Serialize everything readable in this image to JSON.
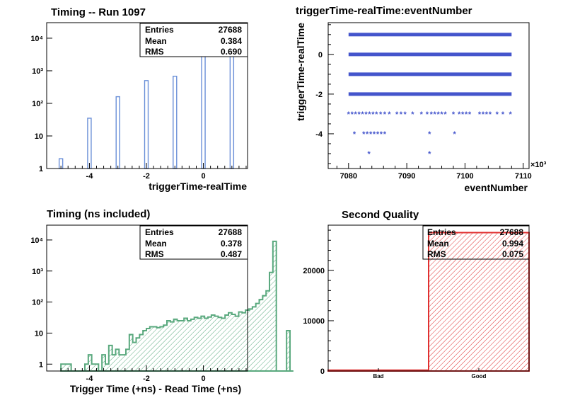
{
  "chart_data": [
    {
      "id": "timing",
      "type": "bar",
      "title": "Timing -- Run 1097",
      "xlabel": "triggerTime-realTime",
      "ylabel": "",
      "x_ticks": [
        "-4",
        "-2",
        "0"
      ],
      "y_ticks": [
        "1",
        "10",
        "10²",
        "10³",
        "10⁴"
      ],
      "y_scale": "log",
      "xlim": [
        -5.5,
        1.55
      ],
      "ylim": [
        1,
        30000
      ],
      "bar_color": "#6a8fd8",
      "categories": [
        -5,
        -4,
        -3,
        -2,
        -1,
        0,
        1
      ],
      "values": [
        2,
        35,
        160,
        500,
        680,
        14000,
        12000
      ],
      "stats": {
        "entries_label": "Entries",
        "entries": "27688",
        "mean_label": "Mean",
        "mean": "0.384",
        "rms_label": "RMS",
        "rms": "0.690"
      }
    },
    {
      "id": "scatter",
      "type": "scatter",
      "title": "triggerTime-realTime:eventNumber",
      "xlabel": "eventNumber",
      "ylabel": "triggerTime-realTime",
      "x_ticks": [
        "7080",
        "7090",
        "7100",
        "7110"
      ],
      "y_ticks": [
        "-4",
        "-2",
        "0"
      ],
      "x_multiplier": "×10³",
      "xlim": [
        7076.5,
        7111
      ],
      "ylim": [
        -5.75,
        1.6
      ],
      "marker_color": "#4455cc",
      "bands": [
        {
          "y": 1,
          "x_ranges": [
            [
              7080,
              7108
            ]
          ]
        },
        {
          "y": 0,
          "x_ranges": [
            [
              7080,
              7108
            ]
          ]
        },
        {
          "y": -1,
          "x_ranges": [
            [
              7080,
              7108
            ]
          ]
        },
        {
          "y": -2,
          "x_ranges": [
            [
              7080,
              7108
            ]
          ]
        }
      ],
      "points": [
        {
          "x": 7080.0,
          "y": -3
        },
        {
          "x": 7080.6,
          "y": -3
        },
        {
          "x": 7081.2,
          "y": -3
        },
        {
          "x": 7081.8,
          "y": -3
        },
        {
          "x": 7082.4,
          "y": -3
        },
        {
          "x": 7083.0,
          "y": -3
        },
        {
          "x": 7083.6,
          "y": -3
        },
        {
          "x": 7084.2,
          "y": -3
        },
        {
          "x": 7084.8,
          "y": -3
        },
        {
          "x": 7085.5,
          "y": -3
        },
        {
          "x": 7086.2,
          "y": -3
        },
        {
          "x": 7087.0,
          "y": -3
        },
        {
          "x": 7088.3,
          "y": -3
        },
        {
          "x": 7089.0,
          "y": -3
        },
        {
          "x": 7089.7,
          "y": -3
        },
        {
          "x": 7091.0,
          "y": -3
        },
        {
          "x": 7092.5,
          "y": -3
        },
        {
          "x": 7093.5,
          "y": -3
        },
        {
          "x": 7094.2,
          "y": -3
        },
        {
          "x": 7094.8,
          "y": -3
        },
        {
          "x": 7095.4,
          "y": -3
        },
        {
          "x": 7096.0,
          "y": -3
        },
        {
          "x": 7096.6,
          "y": -3
        },
        {
          "x": 7098.0,
          "y": -3
        },
        {
          "x": 7099.0,
          "y": -3
        },
        {
          "x": 7099.6,
          "y": -3
        },
        {
          "x": 7100.2,
          "y": -3
        },
        {
          "x": 7100.8,
          "y": -3
        },
        {
          "x": 7102.5,
          "y": -3
        },
        {
          "x": 7103.1,
          "y": -3
        },
        {
          "x": 7103.7,
          "y": -3
        },
        {
          "x": 7104.3,
          "y": -3
        },
        {
          "x": 7105.5,
          "y": -3
        },
        {
          "x": 7106.5,
          "y": -3
        },
        {
          "x": 7107.8,
          "y": -3
        },
        {
          "x": 7081.0,
          "y": -4
        },
        {
          "x": 7082.6,
          "y": -4
        },
        {
          "x": 7083.2,
          "y": -4
        },
        {
          "x": 7083.8,
          "y": -4
        },
        {
          "x": 7084.4,
          "y": -4
        },
        {
          "x": 7085.0,
          "y": -4
        },
        {
          "x": 7085.6,
          "y": -4
        },
        {
          "x": 7086.2,
          "y": -4
        },
        {
          "x": 7093.9,
          "y": -4
        },
        {
          "x": 7098.2,
          "y": -4
        },
        {
          "x": 7083.5,
          "y": -5
        },
        {
          "x": 7093.9,
          "y": -5
        }
      ]
    },
    {
      "id": "timing-ns",
      "type": "area",
      "title": "Timing (ns included)",
      "xlabel": "Trigger Time (+ns) - Read Time (+ns)",
      "ylabel": "",
      "x_ticks": [
        "-4",
        "-2",
        "0"
      ],
      "y_ticks": [
        "1",
        "10",
        "10²",
        "10³",
        "10⁴"
      ],
      "y_scale": "log",
      "xlim": [
        -5.5,
        1.55
      ],
      "ylim": [
        0.6,
        30000
      ],
      "line_color": "#5aa97e",
      "bin_width": 0.12,
      "bins_x0": -5.0,
      "values": [
        1,
        1,
        1,
        0,
        0,
        0,
        0,
        1,
        2,
        1,
        1,
        0,
        2,
        1,
        4,
        2,
        3,
        2,
        2,
        3,
        9,
        5,
        7,
        9,
        12,
        14,
        16,
        16,
        15,
        16,
        18,
        25,
        23,
        28,
        25,
        25,
        30,
        25,
        28,
        32,
        30,
        35,
        30,
        33,
        38,
        35,
        32,
        30,
        38,
        45,
        40,
        35,
        48,
        45,
        55,
        60,
        70,
        90,
        120,
        160,
        230,
        900,
        9000,
        0,
        0,
        0,
        12,
        0
      ],
      "stats": {
        "entries_label": "Entries",
        "entries": "27688",
        "mean_label": "Mean",
        "mean": "0.378",
        "rms_label": "RMS",
        "rms": "0.487"
      }
    },
    {
      "id": "second-quality",
      "type": "bar",
      "title": "Second Quality",
      "xlabel": "",
      "ylabel": "",
      "categories": [
        "Bad",
        "Good"
      ],
      "values": [
        170,
        27518
      ],
      "y_ticks": [
        "0",
        "10000",
        "20000"
      ],
      "ylim": [
        0,
        29000
      ],
      "line_color": "#e03030",
      "stats": {
        "entries_label": "Entries",
        "entries": "27688",
        "mean_label": "Mean",
        "mean": "0.994",
        "rms_label": "RMS",
        "rms": "0.075"
      }
    }
  ]
}
